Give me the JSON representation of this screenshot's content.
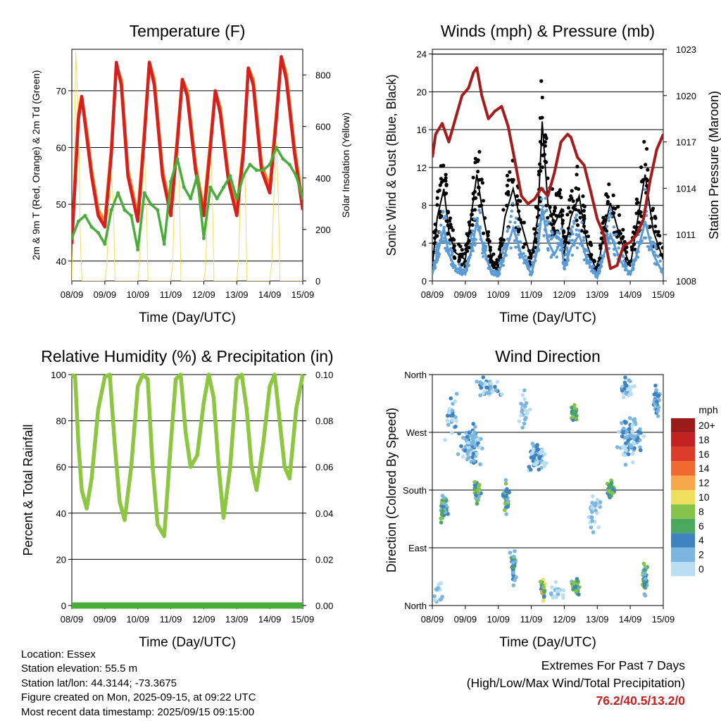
{
  "chart_data": [
    {
      "type": "line",
      "title": "Temperature (F)",
      "xlabel": "Time (Day/UTC)",
      "ylabel": "2m & 9m T (Red, Orange) & 2m Td (Green)",
      "y2label": "Solar Insolation (Yellow)",
      "x_ticks": [
        "08/09",
        "09/09",
        "10/09",
        "11/09",
        "12/09",
        "13/09",
        "14/09",
        "15/09"
      ],
      "y_ticks": [
        "40",
        "50",
        "60",
        "70"
      ],
      "y2_ticks": [
        "0",
        "200",
        "400",
        "600",
        "800"
      ],
      "xlim": [
        0,
        7
      ],
      "ylim": [
        36.5,
        77.3
      ],
      "y2lim": [
        0,
        900
      ],
      "grid": "horizontal",
      "series": [
        {
          "color": "#f5dd5a",
          "x": [
            0.0,
            0.05,
            0.12,
            0.18,
            0.22,
            0.26,
            0.31,
            1.0,
            1.06,
            1.12,
            1.2,
            1.26,
            1.31,
            2.0,
            2.06,
            2.12,
            2.2,
            2.26,
            2.31,
            3.0,
            3.06,
            3.12,
            3.2,
            3.26,
            3.31,
            4.0,
            4.06,
            4.12,
            4.2,
            4.26,
            4.31,
            5.0,
            5.06,
            5.12,
            5.2,
            5.26,
            5.31,
            6.0,
            6.06,
            6.12,
            6.2,
            6.26,
            6.31,
            7.0
          ],
          "values": [
            0,
            300,
            890,
            700,
            500,
            150,
            0,
            0,
            60,
            250,
            420,
            300,
            0,
            0,
            80,
            330,
            500,
            320,
            0,
            0,
            70,
            360,
            560,
            350,
            0,
            0,
            60,
            300,
            580,
            330,
            0,
            0,
            90,
            390,
            620,
            360,
            0,
            0,
            70,
            310,
            540,
            320,
            0,
            0
          ]
        },
        {
          "color": "#f08c28",
          "x": [
            0,
            0.1,
            0.2,
            0.3,
            0.45,
            0.6,
            0.8,
            1.0,
            1.2,
            1.35,
            1.5,
            1.7,
            2.0,
            2.2,
            2.35,
            2.5,
            2.75,
            3.0,
            3.2,
            3.35,
            3.5,
            3.75,
            4.0,
            4.2,
            4.35,
            4.5,
            4.75,
            5.0,
            5.2,
            5.35,
            5.5,
            5.75,
            6.0,
            6.2,
            6.35,
            6.5,
            6.75,
            7.0
          ],
          "values": [
            43,
            55,
            66,
            69,
            63,
            56,
            49,
            47,
            60,
            74,
            72,
            56,
            48,
            63,
            75,
            72,
            56,
            49,
            62,
            72,
            70,
            57,
            49,
            61,
            70,
            67,
            55,
            49,
            60,
            74,
            72,
            57,
            53,
            66,
            76,
            73,
            60,
            50
          ]
        },
        {
          "color": "#d62020",
          "x": [
            0,
            0.1,
            0.2,
            0.3,
            0.45,
            0.6,
            0.8,
            1.0,
            1.2,
            1.35,
            1.5,
            1.7,
            2.0,
            2.2,
            2.35,
            2.5,
            2.75,
            3.0,
            3.2,
            3.35,
            3.5,
            3.75,
            4.0,
            4.2,
            4.35,
            4.5,
            4.75,
            5.0,
            5.2,
            5.35,
            5.5,
            5.75,
            6.0,
            6.2,
            6.35,
            6.5,
            6.75,
            7.0
          ],
          "values": [
            43,
            54,
            65,
            69,
            62,
            55,
            48,
            46,
            59,
            75,
            71,
            55,
            47,
            62,
            75,
            71,
            55,
            48,
            61,
            72,
            69,
            56,
            48,
            60,
            70,
            66,
            54,
            48,
            59,
            74,
            71,
            56,
            52,
            65,
            76,
            72,
            59,
            49
          ]
        },
        {
          "color": "#49ad3c",
          "x": [
            0,
            0.2,
            0.4,
            0.6,
            0.8,
            1.0,
            1.2,
            1.4,
            1.6,
            1.8,
            2.0,
            2.2,
            2.4,
            2.6,
            2.8,
            3.0,
            3.2,
            3.4,
            3.6,
            3.8,
            4.0,
            4.2,
            4.4,
            4.6,
            4.8,
            5.0,
            5.2,
            5.4,
            5.6,
            5.8,
            6.0,
            6.2,
            6.4,
            6.6,
            6.8,
            7.0
          ],
          "values": [
            44,
            47,
            48,
            46,
            45,
            43,
            49,
            52,
            49,
            48,
            42,
            52,
            50,
            49,
            43,
            54,
            58,
            53,
            51,
            55,
            44,
            53,
            51,
            53,
            55,
            51,
            55,
            57,
            56,
            56,
            57,
            60,
            58,
            57,
            55,
            51
          ]
        }
      ]
    },
    {
      "type": "line",
      "title": "Winds (mph) & Pressure (mb)",
      "xlabel": "Time (Day/UTC)",
      "ylabel": "Sonic Wind & Gust (Blue, Black)",
      "y2label": "Station Pressure (Maroon)",
      "x_ticks": [
        "08/09",
        "09/09",
        "10/09",
        "11/09",
        "12/09",
        "13/09",
        "14/09",
        "15/09"
      ],
      "y_ticks": [
        "0",
        "4",
        "8",
        "12",
        "16",
        "20",
        "24"
      ],
      "y2_ticks": [
        "1008",
        "1011",
        "1014",
        "1017",
        "1020",
        "1023"
      ],
      "xlim": [
        0,
        7
      ],
      "ylim": [
        0,
        24.5
      ],
      "y2lim": [
        1008,
        1023
      ],
      "grid": "horizontal",
      "series": [
        {
          "color": "#000000",
          "x": [
            0,
            0.15,
            0.35,
            0.5,
            0.7,
            1.0,
            1.2,
            1.35,
            1.55,
            1.8,
            2.0,
            2.2,
            2.45,
            2.7,
            3.0,
            3.2,
            3.33,
            3.5,
            3.7,
            3.9,
            4.0,
            4.2,
            4.45,
            4.7,
            5.0,
            5.2,
            5.4,
            5.7,
            6.0,
            6.2,
            6.45,
            6.7,
            7.0
          ],
          "values": [
            2,
            9,
            13,
            7,
            4,
            3,
            10,
            15,
            9,
            3,
            2,
            9,
            13,
            8,
            3,
            9,
            22.5,
            11,
            8,
            10,
            4,
            9,
            12,
            5,
            1,
            7,
            11,
            6,
            2,
            8,
            15,
            7,
            3
          ]
        },
        {
          "color": "#5b9bd5",
          "x": [
            0,
            0.15,
            0.35,
            0.5,
            0.7,
            1.0,
            1.2,
            1.35,
            1.55,
            1.8,
            2.0,
            2.2,
            2.45,
            2.7,
            3.0,
            3.2,
            3.33,
            3.5,
            3.7,
            3.9,
            4.0,
            4.2,
            4.45,
            4.7,
            5.0,
            5.2,
            5.4,
            5.7,
            6.0,
            6.2,
            6.45,
            6.7,
            7.0
          ],
          "values": [
            1,
            4,
            8,
            4,
            2,
            1,
            5,
            9,
            5,
            1,
            1,
            4,
            8,
            4,
            1,
            5,
            11,
            6,
            4,
            6,
            2,
            5,
            7,
            3,
            0.5,
            4,
            7,
            3,
            1,
            4,
            9,
            4,
            1
          ]
        },
        {
          "color": "#a51c1c",
          "x": [
            0,
            0.1,
            0.3,
            0.5,
            0.7,
            0.9,
            1.1,
            1.25,
            1.35,
            1.5,
            1.7,
            1.9,
            2.1,
            2.3,
            2.5,
            2.7,
            2.9,
            3.1,
            3.3,
            3.5,
            3.7,
            3.9,
            4.1,
            4.2,
            4.4,
            4.6,
            4.8,
            5.0,
            5.2,
            5.4,
            5.6,
            5.8,
            6.0,
            6.2,
            6.4,
            6.6,
            6.8,
            7.0
          ],
          "values": [
            1016,
            1017.5,
            1018.2,
            1017,
            1018.5,
            1020,
            1020.5,
            1021.5,
            1021.8,
            1020,
            1018.5,
            1019,
            1019.3,
            1018,
            1015.8,
            1013.5,
            1013,
            1013.3,
            1014,
            1013.5,
            1015,
            1017,
            1017.5,
            1017.3,
            1016,
            1015.5,
            1013.8,
            1012,
            1011,
            1008.8,
            1009,
            1010.3,
            1010.5,
            1011,
            1012,
            1014.5,
            1016.5,
            1017.5
          ]
        }
      ]
    },
    {
      "type": "line",
      "title": "Relative Humidity (%) & Precipitation (in)",
      "xlabel": "Time (Day/UTC)",
      "ylabel": "Percent & Total Rainfall",
      "x_ticks": [
        "08/09",
        "09/09",
        "10/09",
        "11/09",
        "12/09",
        "13/09",
        "14/09",
        "15/09"
      ],
      "y_ticks": [
        "0",
        "20",
        "40",
        "60",
        "80",
        "100"
      ],
      "y2_ticks": [
        "0.00",
        "0.02",
        "0.04",
        "0.06",
        "0.08",
        "0.10"
      ],
      "xlim": [
        0,
        7
      ],
      "ylim": [
        0,
        100
      ],
      "y2lim": [
        0,
        0.1
      ],
      "grid": "horizontal",
      "series": [
        {
          "color": "#8dc640",
          "x": [
            0,
            0.1,
            0.2,
            0.3,
            0.45,
            0.6,
            0.8,
            1.0,
            1.15,
            1.3,
            1.45,
            1.6,
            1.8,
            2.0,
            2.15,
            2.3,
            2.45,
            2.6,
            2.8,
            3.0,
            3.15,
            3.3,
            3.45,
            3.6,
            3.8,
            4.0,
            4.15,
            4.3,
            4.45,
            4.6,
            4.8,
            5.0,
            5.15,
            5.3,
            5.45,
            5.6,
            5.8,
            6.0,
            6.15,
            6.3,
            6.45,
            6.6,
            6.8,
            7.0
          ],
          "values": [
            100,
            99,
            70,
            50,
            42,
            55,
            85,
            99,
            100,
            70,
            45,
            37,
            60,
            95,
            100,
            98,
            60,
            35,
            30,
            70,
            98,
            100,
            75,
            60,
            65,
            88,
            100,
            90,
            60,
            38,
            60,
            98,
            100,
            85,
            60,
            50,
            70,
            95,
            100,
            80,
            60,
            55,
            85,
            100
          ]
        },
        {
          "color": "#49ad3c",
          "x": [
            0,
            7
          ],
          "values": [
            0,
            0
          ]
        }
      ]
    },
    {
      "type": "scatter",
      "title": "Wind Direction",
      "xlabel": "Time (Day/UTC)",
      "ylabel": "Direction (Colored By Speed)",
      "x_ticks": [
        "08/09",
        "09/09",
        "10/09",
        "11/09",
        "12/09",
        "13/09",
        "14/09",
        "15/09"
      ],
      "y_ticks": [
        "North",
        "East",
        "South",
        "West",
        "North"
      ],
      "xlim": [
        0,
        7
      ],
      "ylim": [
        0,
        360
      ],
      "grid": "horizontal",
      "legend_title": "mph",
      "legend": [
        {
          "label": "20+",
          "color": "#9b1b1b"
        },
        {
          "label": "18",
          "color": "#c32121"
        },
        {
          "label": "16",
          "color": "#dc3c2a"
        },
        {
          "label": "14",
          "color": "#f06a2f"
        },
        {
          "label": "12",
          "color": "#f7a84a"
        },
        {
          "label": "10",
          "color": "#eee05e"
        },
        {
          "label": "8",
          "color": "#86c34d"
        },
        {
          "label": "6",
          "color": "#4aa95e"
        },
        {
          "label": "4",
          "color": "#3f82c0"
        },
        {
          "label": "2",
          "color": "#7ab6e0"
        },
        {
          "label": "0",
          "color": "#b9def3"
        }
      ],
      "clusters": [
        {
          "x": 0.35,
          "dir": 150,
          "sx": 0.15,
          "sy": 30,
          "n": 50,
          "spd": [
            2,
            4,
            6,
            8
          ]
        },
        {
          "x": 1.35,
          "dir": 180,
          "sx": 0.15,
          "sy": 25,
          "n": 45,
          "spd": [
            2,
            4,
            6,
            8
          ]
        },
        {
          "x": 2.25,
          "dir": 170,
          "sx": 0.12,
          "sy": 35,
          "n": 40,
          "spd": [
            2,
            4,
            6,
            8
          ]
        },
        {
          "x": 2.45,
          "dir": 60,
          "sx": 0.12,
          "sy": 40,
          "n": 35,
          "spd": [
            2,
            4,
            4,
            6
          ]
        },
        {
          "x": 3.35,
          "dir": 25,
          "sx": 0.1,
          "sy": 20,
          "n": 35,
          "spd": [
            4,
            6,
            8,
            10,
            12
          ]
        },
        {
          "x": 4.35,
          "dir": 30,
          "sx": 0.15,
          "sy": 20,
          "n": 45,
          "spd": [
            2,
            4,
            6,
            8
          ]
        },
        {
          "x": 4.3,
          "dir": 300,
          "sx": 0.12,
          "sy": 20,
          "n": 30,
          "spd": [
            4,
            6,
            8
          ]
        },
        {
          "x": 5.4,
          "dir": 180,
          "sx": 0.15,
          "sy": 18,
          "n": 40,
          "spd": [
            4,
            6,
            8
          ]
        },
        {
          "x": 6.45,
          "dir": 40,
          "sx": 0.1,
          "sy": 35,
          "n": 45,
          "spd": [
            2,
            4,
            6,
            8
          ]
        },
        {
          "x": 1.2,
          "dir": 250,
          "sx": 0.5,
          "sy": 40,
          "n": 90,
          "spd": [
            0,
            2,
            2,
            4
          ]
        },
        {
          "x": 3.2,
          "dir": 230,
          "sx": 0.35,
          "sy": 30,
          "n": 90,
          "spd": [
            0,
            2,
            4
          ]
        },
        {
          "x": 6.0,
          "dir": 260,
          "sx": 0.5,
          "sy": 45,
          "n": 90,
          "spd": [
            0,
            2,
            2,
            4
          ]
        },
        {
          "x": 1.7,
          "dir": 340,
          "sx": 0.5,
          "sy": 20,
          "n": 40,
          "spd": [
            0,
            2,
            4
          ]
        },
        {
          "x": 5.9,
          "dir": 340,
          "sx": 0.3,
          "sy": 20,
          "n": 30,
          "spd": [
            0,
            2,
            4
          ]
        },
        {
          "x": 6.8,
          "dir": 320,
          "sx": 0.15,
          "sy": 40,
          "n": 30,
          "spd": [
            2,
            4
          ]
        },
        {
          "x": 0.2,
          "dir": 20,
          "sx": 0.2,
          "sy": 20,
          "n": 15,
          "spd": [
            0,
            2
          ]
        },
        {
          "x": 3.8,
          "dir": 20,
          "sx": 0.3,
          "sy": 20,
          "n": 20,
          "spd": [
            0,
            2
          ]
        },
        {
          "x": 4.9,
          "dir": 140,
          "sx": 0.3,
          "sy": 40,
          "n": 30,
          "spd": [
            0,
            2
          ]
        },
        {
          "x": 2.8,
          "dir": 300,
          "sx": 0.3,
          "sy": 40,
          "n": 25,
          "spd": [
            0,
            2
          ]
        },
        {
          "x": 0.6,
          "dir": 300,
          "sx": 0.3,
          "sy": 50,
          "n": 25,
          "spd": [
            0,
            2,
            4
          ]
        }
      ]
    }
  ],
  "info": {
    "location": "Location: Essex",
    "elevation": "Station elevation: 55.5 m",
    "latlon": "Station lat/lon: 44.3144; -73.3675",
    "created": "Figure created on Mon, 2025-09-15, at 09:22 UTC",
    "recent": "Most recent data timestamp: 2025/09/15 09:15:00"
  },
  "extremes": {
    "title": "Extremes For Past 7 Days",
    "subtitle": "(High/Low/Max Wind/Total Precipitation)",
    "values": "76.2/40.5/13.2/0"
  }
}
